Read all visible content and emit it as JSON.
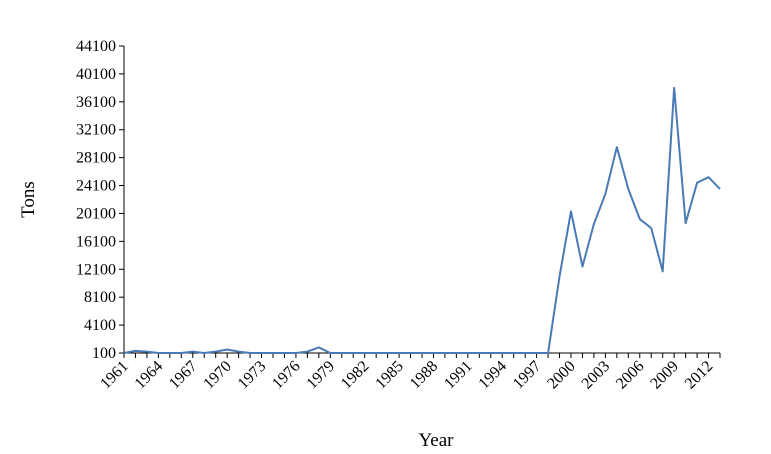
{
  "chart_data": {
    "type": "line",
    "title": "",
    "xlabel": "Year",
    "ylabel": "Tons",
    "ylim": [
      100,
      44100
    ],
    "yticks": [
      100,
      4100,
      8100,
      12100,
      16100,
      20100,
      24100,
      28100,
      32100,
      36100,
      40100,
      44100
    ],
    "xticks": [
      1961,
      1964,
      1967,
      1970,
      1973,
      1976,
      1979,
      1982,
      1985,
      1988,
      1991,
      1994,
      1997,
      2000,
      2003,
      2006,
      2009,
      2012
    ],
    "grid": false,
    "legend": "none",
    "series": [
      {
        "color": "#4a7ab5",
        "x": [
          1961,
          1962,
          1963,
          1964,
          1965,
          1966,
          1967,
          1968,
          1969,
          1970,
          1971,
          1972,
          1973,
          1974,
          1975,
          1976,
          1977,
          1978,
          1979,
          1980,
          1981,
          1982,
          1983,
          1984,
          1985,
          1986,
          1987,
          1988,
          1989,
          1990,
          1991,
          1992,
          1993,
          1994,
          1995,
          1996,
          1997,
          1998,
          1999,
          2000,
          2001,
          2002,
          2003,
          2004,
          2005,
          2006,
          2007,
          2008,
          2009,
          2010,
          2011,
          2012,
          2013
        ],
        "values": [
          100,
          400,
          300,
          100,
          100,
          100,
          300,
          100,
          300,
          600,
          300,
          100,
          100,
          100,
          100,
          100,
          300,
          900,
          100,
          100,
          100,
          100,
          100,
          100,
          100,
          100,
          100,
          100,
          100,
          100,
          100,
          100,
          100,
          100,
          100,
          100,
          100,
          100,
          11100,
          20400,
          12500,
          18600,
          22900,
          29600,
          23600,
          19300,
          18000,
          11800,
          38100,
          18700,
          24500,
          25300,
          23600
        ]
      }
    ]
  }
}
